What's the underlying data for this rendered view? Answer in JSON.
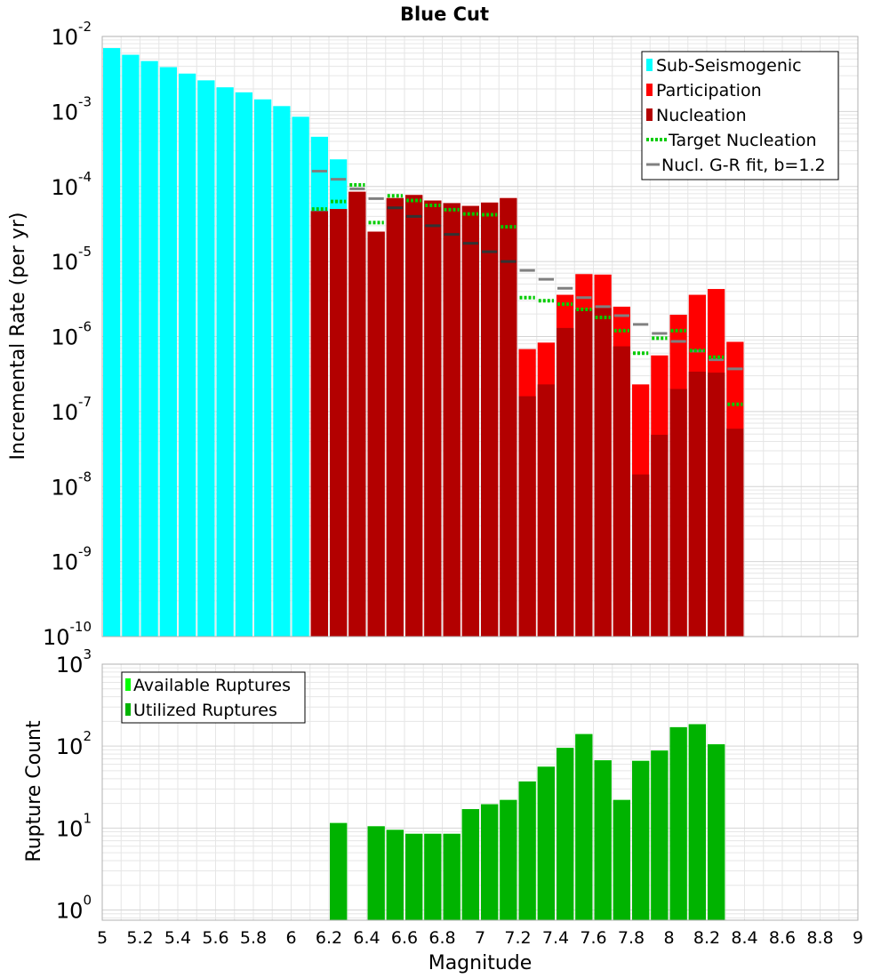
{
  "colors": {
    "sub_seismogenic": "#00ffff",
    "participation": "#ff0000",
    "nucleation": "#b30000",
    "target_nucleation": "#00cc00",
    "gr_fit": "#808080",
    "gr_fit_dark": "#333333",
    "available_ruptures": "#00ff00",
    "utilized_ruptures": "#00b300",
    "grid": "#e6e6e6"
  },
  "chart_data": [
    {
      "type": "bar",
      "title": "Blue Cut",
      "xlabel": "",
      "ylabel": "Incremental Rate (per yr)",
      "y_scale": "log",
      "ylim": [
        1e-10,
        0.01
      ],
      "xlim": [
        5.0,
        9.0
      ],
      "y_ticks": [
        {
          "base": "10",
          "exp": "-10",
          "value": 1e-10
        },
        {
          "base": "10",
          "exp": "-9",
          "value": 1e-09
        },
        {
          "base": "10",
          "exp": "-8",
          "value": 1e-08
        },
        {
          "base": "10",
          "exp": "-7",
          "value": 1e-07
        },
        {
          "base": "10",
          "exp": "-6",
          "value": 1e-06
        },
        {
          "base": "10",
          "exp": "-5",
          "value": 1e-05
        },
        {
          "base": "10",
          "exp": "-4",
          "value": 0.0001
        },
        {
          "base": "10",
          "exp": "-3",
          "value": 0.001
        },
        {
          "base": "10",
          "exp": "-2",
          "value": 0.01
        }
      ],
      "legend": {
        "position": "top-right",
        "entries": [
          "Sub-Seismogenic",
          "Participation",
          "Nucleation",
          " Target Nucleation",
          "Nucl. G-R fit, b=1.2"
        ]
      },
      "bin_width": 0.1,
      "series": [
        {
          "name": "Sub-Seismogenic",
          "x": [
            5.05,
            5.15,
            5.25,
            5.35,
            5.45,
            5.55,
            5.65,
            5.75,
            5.85,
            5.95,
            6.05,
            6.15,
            6.25
          ],
          "values": [
            0.007,
            0.0057,
            0.0047,
            0.0039,
            0.0032,
            0.0026,
            0.0021,
            0.0018,
            0.00145,
            0.00118,
            0.00085,
            0.00046,
            0.00023
          ]
        },
        {
          "name": "Participation",
          "x": [
            6.15,
            6.25,
            6.35,
            6.45,
            6.55,
            6.65,
            6.75,
            6.85,
            6.95,
            7.05,
            7.15,
            7.25,
            7.35,
            7.45,
            7.55,
            7.65,
            7.75,
            7.85,
            7.95,
            8.05,
            8.15,
            8.25,
            8.35
          ],
          "values": [
            4.7e-05,
            5e-05,
            8.5e-05,
            2.5e-05,
            7e-05,
            7.7e-05,
            6.5e-05,
            6e-05,
            5.5e-05,
            6.1e-05,
            7e-05,
            6.8e-07,
            8.3e-07,
            3.6e-06,
            6.8e-06,
            6.7e-06,
            2.5e-06,
            2.3e-07,
            5.6e-07,
            1.95e-06,
            3.6e-06,
            4.3e-06,
            8.5e-07
          ]
        },
        {
          "name": "Nucleation",
          "x": [
            6.15,
            6.25,
            6.35,
            6.45,
            6.55,
            6.65,
            6.75,
            6.85,
            6.95,
            7.05,
            7.15,
            7.25,
            7.35,
            7.45,
            7.55,
            7.65,
            7.75,
            7.85,
            7.95,
            8.05,
            8.15,
            8.25,
            8.35
          ],
          "values": [
            4.7e-05,
            5e-05,
            8.5e-05,
            2.5e-05,
            7e-05,
            7.7e-05,
            6.5e-05,
            6e-05,
            5.5e-05,
            6.1e-05,
            7e-05,
            1.6e-07,
            2.3e-07,
            1.3e-06,
            2.3e-06,
            2.4e-06,
            7.4e-07,
            1.45e-08,
            4.9e-08,
            2e-07,
            3.4e-07,
            3.3e-07,
            5.9e-08
          ]
        },
        {
          "name": " Target Nucleation",
          "x": [
            6.15,
            6.25,
            6.35,
            6.45,
            6.55,
            6.65,
            6.75,
            6.85,
            6.95,
            7.05,
            7.15,
            7.25,
            7.35,
            7.45,
            7.55,
            7.65,
            7.75,
            7.85,
            7.95,
            8.05,
            8.15,
            8.25,
            8.35
          ],
          "values": [
            5e-05,
            6.3e-05,
            0.000105,
            3.3e-05,
            7.5e-05,
            6.5e-05,
            5.6e-05,
            4.9e-05,
            4.3e-05,
            4.2e-05,
            2.9e-05,
            3.3e-06,
            3e-06,
            2.7e-06,
            2.3e-06,
            1.8e-06,
            1.2e-06,
            6e-07,
            9.5e-07,
            1.2e-06,
            6.5e-07,
            5.3e-07,
            1.25e-07
          ]
        },
        {
          "name": "Nucl. G-R fit, b=1.2",
          "x": [
            6.15,
            6.25,
            6.35,
            6.45,
            6.55,
            6.65,
            6.75,
            6.85,
            6.95,
            7.05,
            7.15,
            7.25,
            7.35,
            7.45,
            7.55,
            7.65,
            7.75,
            7.85,
            7.95,
            8.05,
            8.15,
            8.25,
            8.35
          ],
          "values": [
            0.00016,
            0.000125,
            9.3e-05,
            6.9e-05,
            5.2e-05,
            4e-05,
            3e-05,
            2.3e-05,
            1.75e-05,
            1.35e-05,
            1e-05,
            7.6e-06,
            5.8e-06,
            4.4e-06,
            3.3e-06,
            2.5e-06,
            1.9e-06,
            1.45e-06,
            1.1e-06,
            8.6e-07,
            6.4e-07,
            4.9e-07,
            3.7e-07
          ]
        }
      ]
    },
    {
      "type": "bar",
      "title": "",
      "xlabel": "Magnitude",
      "ylabel": "Rupture Count",
      "y_scale": "log",
      "ylim": [
        0.75,
        1000
      ],
      "xlim": [
        5.0,
        9.0
      ],
      "x_ticks": [
        "5",
        "5.2",
        "5.4",
        "5.6",
        "5.8",
        "6",
        "6.2",
        "6.4",
        "6.6",
        "6.8",
        "7",
        "7.2",
        "7.4",
        "7.6",
        "7.8",
        "8",
        "8.2",
        "8.4",
        "8.6",
        "8.8",
        "9"
      ],
      "y_ticks": [
        {
          "base": "10",
          "exp": "0",
          "value": 1
        },
        {
          "base": "10",
          "exp": "1",
          "value": 10
        },
        {
          "base": "10",
          "exp": "2",
          "value": 100
        },
        {
          "base": "10",
          "exp": "3",
          "value": 1000
        }
      ],
      "legend": {
        "position": "top-left",
        "entries": [
          "Available Ruptures",
          "Utilized Ruptures"
        ]
      },
      "bin_width": 0.1,
      "series": [
        {
          "name": "Available Ruptures",
          "x": [
            6.25,
            6.45,
            6.55,
            6.65,
            6.75,
            6.85,
            6.95,
            7.05,
            7.15,
            7.25,
            7.35,
            7.45,
            7.55,
            7.65,
            7.75,
            7.85,
            7.95,
            8.05,
            8.15,
            8.25
          ],
          "values": [
            11.5,
            10.5,
            9.5,
            8.5,
            8.5,
            8.5,
            17,
            19.5,
            22,
            37,
            56,
            95,
            140,
            67,
            22,
            66,
            88,
            170,
            185,
            105
          ]
        },
        {
          "name": "Utilized Ruptures",
          "x": [
            6.25,
            6.45,
            6.55,
            6.65,
            6.75,
            6.85,
            6.95,
            7.05,
            7.15,
            7.25,
            7.35,
            7.45,
            7.55,
            7.65,
            7.75,
            7.85,
            7.95,
            8.05,
            8.15,
            8.25
          ],
          "values": [
            11.5,
            10.5,
            9.5,
            8.5,
            8.5,
            8.5,
            17,
            19.5,
            22,
            37,
            56,
            95,
            140,
            67,
            22,
            66,
            88,
            170,
            185,
            105
          ]
        }
      ]
    }
  ]
}
